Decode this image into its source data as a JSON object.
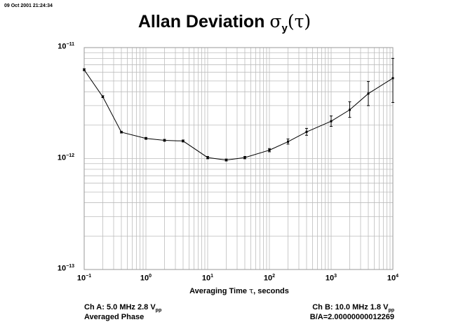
{
  "timestamp": "09 Oct 2001 21:24:34",
  "title_prefix": "Allan Deviation ",
  "title_sigma": "σ",
  "title_sub": "y",
  "title_paren": "(τ)",
  "xlabel_prefix": "Averaging Time ",
  "xlabel_tau": "τ",
  "xlabel_suffix": ", seconds",
  "footer": {
    "cha_prefix": "Ch A: 5.0 MHz 2.8 V",
    "cha_sub": "pp",
    "chb_prefix": "Ch B: 10.0 MHz 1.8 V",
    "chb_sub": "pp",
    "mode": "Averaged Phase",
    "ratio": "B/A=2.00000000012269"
  },
  "chart_data": {
    "type": "line",
    "x_scale": "log",
    "y_scale": "log",
    "xlim": [
      0.1,
      10000
    ],
    "ylim": [
      1e-13,
      1e-11
    ],
    "grid": true,
    "x_ticks": [
      {
        "base": "10",
        "exp": "−1"
      },
      {
        "base": "10",
        "exp": "0"
      },
      {
        "base": "10",
        "exp": "1"
      },
      {
        "base": "10",
        "exp": "2"
      },
      {
        "base": "10",
        "exp": "3"
      },
      {
        "base": "10",
        "exp": "4"
      }
    ],
    "y_ticks": [
      {
        "base": "10",
        "exp": "−11"
      },
      {
        "base": "10",
        "exp": "−12"
      },
      {
        "base": "10",
        "exp": "−13"
      }
    ],
    "points": [
      {
        "tau": 0.1,
        "adev": 6.3e-12,
        "lo": 6.2e-12,
        "hi": 6.45e-12
      },
      {
        "tau": 0.2,
        "adev": 3.6e-12,
        "lo": 3.55e-12,
        "hi": 3.68e-12
      },
      {
        "tau": 0.4,
        "adev": 1.73e-12,
        "lo": 1.7e-12,
        "hi": 1.76e-12
      },
      {
        "tau": 1,
        "adev": 1.52e-12,
        "lo": 1.49e-12,
        "hi": 1.55e-12
      },
      {
        "tau": 2,
        "adev": 1.46e-12,
        "lo": 1.43e-12,
        "hi": 1.49e-12
      },
      {
        "tau": 4,
        "adev": 1.44e-12,
        "lo": 1.41e-12,
        "hi": 1.47e-12
      },
      {
        "tau": 10,
        "adev": 1.02e-12,
        "lo": 9.95e-13,
        "hi": 1.045e-12
      },
      {
        "tau": 20,
        "adev": 9.7e-13,
        "lo": 9.5e-13,
        "hi": 9.9e-13
      },
      {
        "tau": 40,
        "adev": 1.02e-12,
        "lo": 9.95e-13,
        "hi": 1.045e-12
      },
      {
        "tau": 100,
        "adev": 1.19e-12,
        "lo": 1.15e-12,
        "hi": 1.23e-12
      },
      {
        "tau": 200,
        "adev": 1.42e-12,
        "lo": 1.35e-12,
        "hi": 1.5e-12
      },
      {
        "tau": 400,
        "adev": 1.74e-12,
        "lo": 1.62e-12,
        "hi": 1.87e-12
      },
      {
        "tau": 1000,
        "adev": 2.17e-12,
        "lo": 1.95e-12,
        "hi": 2.42e-12
      },
      {
        "tau": 2000,
        "adev": 2.75e-12,
        "lo": 2.35e-12,
        "hi": 3.25e-12
      },
      {
        "tau": 4000,
        "adev": 3.85e-12,
        "lo": 3e-12,
        "hi": 4.95e-12
      },
      {
        "tau": 10000,
        "adev": 5.3e-12,
        "lo": 3.2e-12,
        "hi": 8e-12
      }
    ]
  }
}
